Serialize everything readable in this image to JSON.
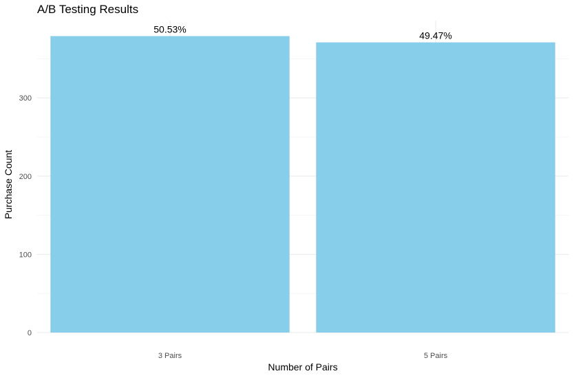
{
  "chart_data": {
    "type": "bar",
    "title": "A/B Testing Results",
    "xlabel": "Number of Pairs",
    "ylabel": "Purchase Count",
    "categories": [
      "3 Pairs",
      "5 Pairs"
    ],
    "values": [
      379,
      371
    ],
    "data_labels": [
      "50.53%",
      "49.47%"
    ],
    "ylim": [
      0,
      380
    ],
    "yticks": [
      0,
      100,
      200,
      300
    ],
    "grid": true,
    "legend": "none",
    "colors": {
      "bar": "#87CEEB",
      "grid_major": "#ebebeb",
      "grid_minor": "#f4f4f4"
    }
  }
}
